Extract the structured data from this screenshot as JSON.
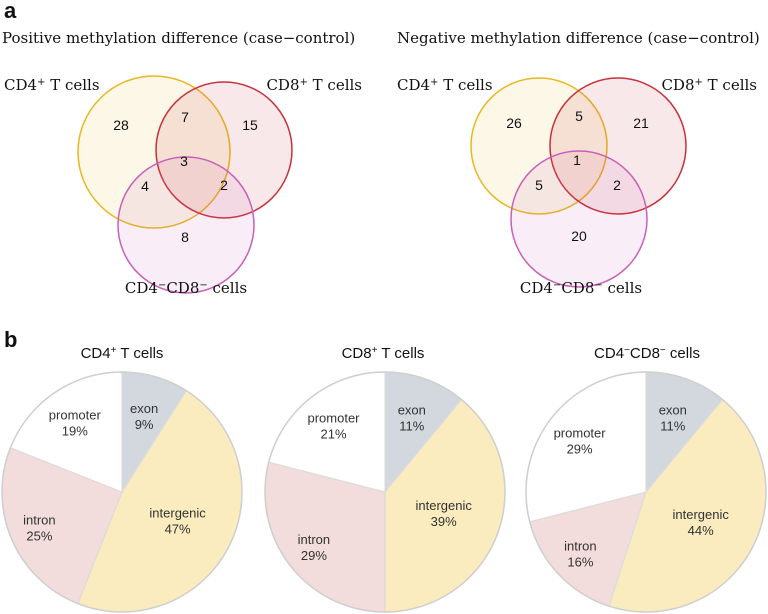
{
  "panel_a": {
    "letter": "a"
  },
  "panel_b": {
    "letter": "b"
  },
  "chart_data": [
    {
      "type": "venn",
      "title": "Positive methylation difference (case−control)",
      "sets": [
        {
          "label": "CD4",
          "sup": "+",
          "suffix": " T cells",
          "color": "#e8b820"
        },
        {
          "label": "CD8",
          "sup": "+",
          "suffix": " T cells",
          "color": "#c9303a"
        },
        {
          "label": "CD4",
          "sup": "−",
          "label2": "CD8",
          "sup2": "−",
          "suffix": " cells",
          "color": "#c860b8"
        }
      ],
      "regions": {
        "cd4_only": 28,
        "cd8_only": 15,
        "dn_only": 8,
        "cd4_cd8": 7,
        "cd4_dn": 4,
        "cd8_dn": 2,
        "all": 3
      }
    },
    {
      "type": "venn",
      "title": "Negative methylation difference (case−control)",
      "sets": [
        {
          "label": "CD4",
          "sup": "+",
          "suffix": " T cells",
          "color": "#e8b820"
        },
        {
          "label": "CD8",
          "sup": "+",
          "suffix": " T cells",
          "color": "#c9303a"
        },
        {
          "label": "CD4",
          "sup": "−",
          "label2": "CD8",
          "sup2": "−",
          "suffix": " cells",
          "color": "#c860b8"
        }
      ],
      "regions": {
        "cd4_only": 26,
        "cd8_only": 21,
        "dn_only": 20,
        "cd4_cd8": 5,
        "cd4_dn": 5,
        "cd8_dn": 2,
        "all": 1
      }
    },
    {
      "type": "pie",
      "title": {
        "label": "CD4",
        "sup": "+",
        "suffix": " T cells"
      },
      "slices": [
        {
          "label": "exon",
          "value": 9,
          "color": "#d3d7de"
        },
        {
          "label": "intergenic",
          "value": 47,
          "color": "#faecbe"
        },
        {
          "label": "intron",
          "value": 25,
          "color": "#f2dcdc"
        },
        {
          "label": "promoter",
          "value": 19,
          "color": "#ffffff"
        }
      ]
    },
    {
      "type": "pie",
      "title": {
        "label": "CD8",
        "sup": "+",
        "suffix": " T cells"
      },
      "slices": [
        {
          "label": "exon",
          "value": 11,
          "color": "#d3d7de"
        },
        {
          "label": "intergenic",
          "value": 39,
          "color": "#faecbe"
        },
        {
          "label": "intron",
          "value": 29,
          "color": "#f2dcdc"
        },
        {
          "label": "promoter",
          "value": 21,
          "color": "#ffffff"
        }
      ]
    },
    {
      "type": "pie",
      "title": {
        "label": "CD4",
        "sup": "−",
        "label2": "CD8",
        "sup2": "−",
        "suffix": " cells"
      },
      "slices": [
        {
          "label": "exon",
          "value": 11,
          "color": "#d3d7de"
        },
        {
          "label": "intergenic",
          "value": 44,
          "color": "#faecbe"
        },
        {
          "label": "intron",
          "value": 16,
          "color": "#f2dcdc"
        },
        {
          "label": "promoter",
          "value": 29,
          "color": "#ffffff"
        }
      ]
    }
  ]
}
